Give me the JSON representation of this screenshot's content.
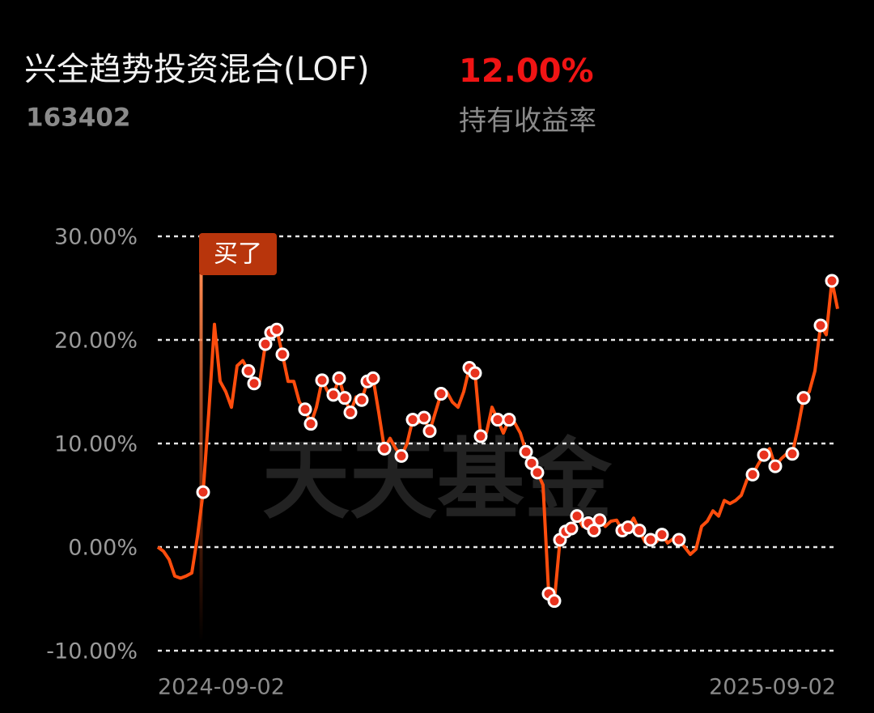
{
  "header": {
    "title": "兴全趋势投资混合(LOF)",
    "code": "163402",
    "return_value": "12.00%",
    "return_label": "持有收益率"
  },
  "watermark": "天天基金",
  "chart_data": {
    "type": "line",
    "categories": [
      "2024-09-02",
      null,
      null,
      null,
      null,
      null,
      null,
      null,
      null,
      null,
      null,
      null,
      null,
      null,
      null,
      null,
      null,
      null,
      null,
      null,
      null,
      null,
      null,
      null,
      null,
      null,
      null,
      null,
      null,
      null,
      null,
      null,
      null,
      null,
      null,
      null,
      null,
      null,
      null,
      null,
      null,
      null,
      null,
      null,
      null,
      null,
      null,
      null,
      null,
      null,
      null,
      null,
      null,
      null,
      null,
      null,
      null,
      null,
      null,
      null,
      null,
      null,
      null,
      null,
      null,
      null,
      null,
      null,
      null,
      null,
      null,
      null,
      null,
      null,
      null,
      null,
      null,
      null,
      null,
      null,
      null,
      null,
      null,
      null,
      null,
      null,
      null,
      null,
      null,
      null,
      null,
      null,
      null,
      null,
      null,
      null,
      null,
      null,
      null,
      null,
      null,
      null,
      null,
      null,
      null,
      null,
      null,
      null,
      null,
      null,
      null,
      null,
      null,
      null,
      null,
      null,
      null,
      null,
      null,
      null,
      "2025-09-02"
    ],
    "color": "#ff4d0d",
    "values": [
      0.0,
      -0.4,
      -1.2,
      -2.8,
      -3.0,
      -2.8,
      -2.5,
      1.0,
      5.3,
      13,
      21.5,
      16,
      15,
      13.5,
      17.5,
      18,
      17,
      15.8,
      16,
      19.6,
      20.7,
      21,
      18.6,
      16,
      16,
      14,
      13.3,
      11.9,
      13.5,
      16.1,
      15,
      14.7,
      16.3,
      14.4,
      13,
      14.5,
      14.2,
      16.0,
      16.3,
      13,
      9.5,
      10.5,
      9.5,
      8.8,
      10,
      12.3,
      12,
      12.5,
      11.2,
      13,
      14.8,
      15,
      14,
      13.5,
      15,
      17.3,
      16.8,
      10.7,
      11,
      13.5,
      12.3,
      11,
      12.3,
      12,
      11,
      9.2,
      8.1,
      7.2,
      6,
      -4.5,
      -5.2,
      0.7,
      1.5,
      1.8,
      3.0,
      2,
      2.3,
      1.6,
      2.6,
      2,
      2.5,
      2.6,
      1.6,
      1.9,
      2.8,
      1.6,
      0.5,
      0.7,
      0.5,
      1.2,
      0.4,
      0.8,
      0.7,
      0,
      -0.7,
      -0.2,
      2,
      2.5,
      3.5,
      3,
      4.5,
      4.2,
      4.5,
      5,
      6.5,
      7.0,
      8,
      8.9,
      9.5,
      7.8,
      8.5,
      9,
      9.0,
      11.5,
      14.4,
      15,
      17,
      21.4,
      20.5,
      25.7,
      23
    ],
    "markers": [
      null,
      null,
      null,
      null,
      null,
      null,
      null,
      null,
      5.3,
      null,
      null,
      null,
      null,
      null,
      null,
      null,
      17,
      15.8,
      null,
      19.6,
      20.7,
      21,
      18.6,
      null,
      null,
      null,
      13.3,
      11.9,
      null,
      16.1,
      null,
      14.7,
      16.3,
      14.4,
      13,
      null,
      14.2,
      16.0,
      16.3,
      null,
      9.5,
      null,
      null,
      8.8,
      null,
      12.3,
      null,
      12.5,
      11.2,
      null,
      14.8,
      null,
      null,
      null,
      null,
      17.3,
      16.8,
      10.7,
      null,
      null,
      12.3,
      null,
      12.3,
      null,
      null,
      9.2,
      8.1,
      7.2,
      null,
      -4.5,
      -5.2,
      0.7,
      1.5,
      1.8,
      3.0,
      null,
      2.3,
      1.6,
      2.6,
      null,
      null,
      null,
      1.6,
      1.9,
      null,
      1.6,
      null,
      0.7,
      null,
      1.2,
      null,
      null,
      0.7,
      null,
      null,
      null,
      null,
      null,
      null,
      null,
      null,
      null,
      null,
      null,
      null,
      7.0,
      null,
      8.9,
      null,
      7.8,
      null,
      null,
      9.0,
      null,
      14.4,
      null,
      null,
      21.4,
      null,
      25.7,
      null
    ],
    "annotation": "买了",
    "annotation_index": 8,
    "ylim": [
      -10,
      30
    ],
    "yticks": [
      {
        "value": -10,
        "label": "-10.00%"
      },
      {
        "value": 0,
        "label": "0.00%"
      },
      {
        "value": 10,
        "label": "10.00%"
      },
      {
        "value": 20,
        "label": "20.00%"
      },
      {
        "value": 30,
        "label": "30.00%"
      }
    ],
    "grid": true
  }
}
